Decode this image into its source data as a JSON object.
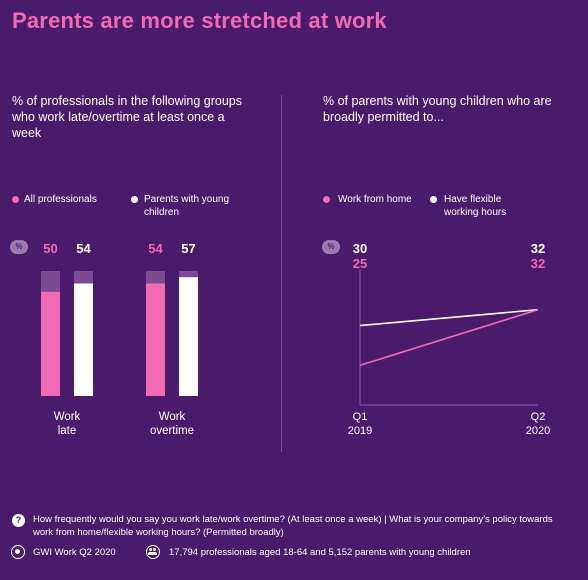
{
  "title": "Parents are more stretched at work",
  "left": {
    "subtitle": "% of professionals in the following groups who work late/overtime at least once a week",
    "legend": [
      "All professionals",
      "Parents with young children"
    ],
    "pct_icon": "%"
  },
  "right": {
    "subtitle": "% of parents with young children who are broadly permitted to...",
    "legend": [
      "Work from home",
      "Have flexible working hours"
    ],
    "pct_icon": "%"
  },
  "colors": {
    "background": "#4a1a6b",
    "pink": "#f06ab4",
    "white": "#ffffff",
    "track": "#7b4a93"
  },
  "footer": {
    "question": "How frequently would you say you work late/work overtime? (At least once a week) | What is your company's policy towards work from home/flexible working hours? (Permitted broadly)",
    "source": "GWI Work Q2 2020",
    "sample": "17,794 professionals aged 18-64 and 5,152 parents with young children"
  },
  "chart_data": [
    {
      "type": "bar",
      "categories": [
        "Work late",
        "Work overtime"
      ],
      "series": [
        {
          "name": "All professionals",
          "values": [
            50,
            54
          ]
        },
        {
          "name": "Parents with young children",
          "values": [
            54,
            57
          ]
        }
      ],
      "ylim": [
        0,
        60
      ],
      "legend": "top-left",
      "grid": false
    },
    {
      "type": "line",
      "x": [
        "Q1 2019",
        "Q2 2020"
      ],
      "x_labels": [
        [
          "Q1",
          "2019"
        ],
        [
          "Q2",
          "2020"
        ]
      ],
      "series": [
        {
          "name": "Work from home",
          "values": [
            25,
            32
          ]
        },
        {
          "name": "Have flexible working hours",
          "values": [
            30,
            32
          ]
        }
      ],
      "ylim": [
        0,
        40
      ],
      "legend": "top-left",
      "grid": false
    }
  ]
}
